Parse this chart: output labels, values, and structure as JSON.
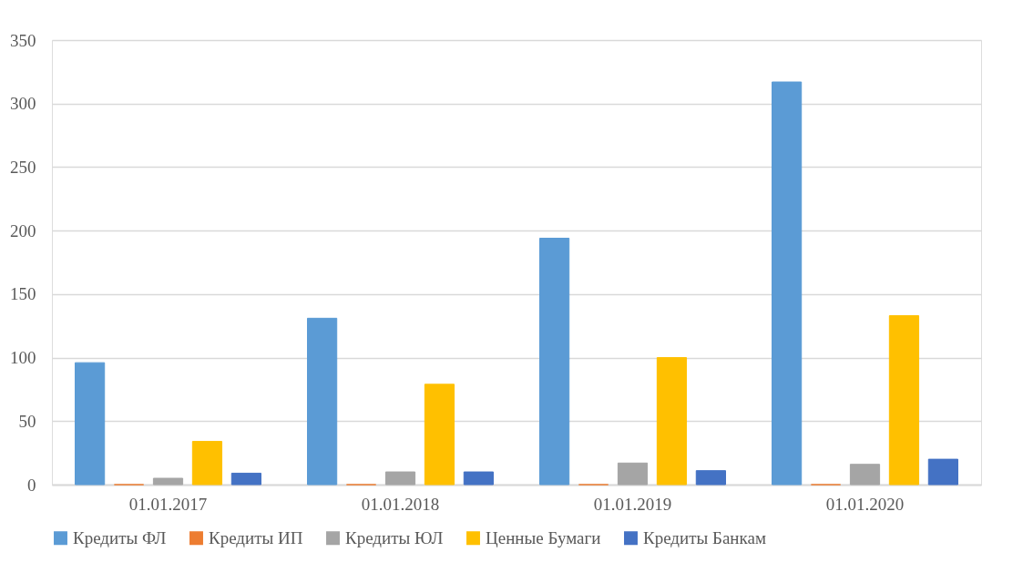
{
  "chart_data": {
    "type": "bar",
    "categories": [
      "01.01.2017",
      "01.01.2018",
      "01.01.2019",
      "01.01.2020"
    ],
    "series": [
      {
        "name": "Кредиты ФЛ",
        "color": "#5b9bd5",
        "values": [
          96,
          131,
          194,
          317
        ]
      },
      {
        "name": "Кредиты ИП",
        "color": "#ed7d31",
        "values": [
          0,
          0,
          0,
          0
        ]
      },
      {
        "name": "Кредиты ЮЛ",
        "color": "#a5a5a5",
        "values": [
          5,
          10,
          17,
          16
        ]
      },
      {
        "name": "Ценные Бумаги",
        "color": "#ffc000",
        "values": [
          34,
          79,
          100,
          133
        ]
      },
      {
        "name": "Кредиты Банкам",
        "color": "#4472c4",
        "values": [
          9,
          10,
          11,
          20
        ]
      }
    ],
    "ylim": [
      0,
      350
    ],
    "yticks": [
      0,
      50,
      100,
      150,
      200,
      250,
      300,
      350
    ],
    "grid": "y",
    "legend": "bottom"
  }
}
